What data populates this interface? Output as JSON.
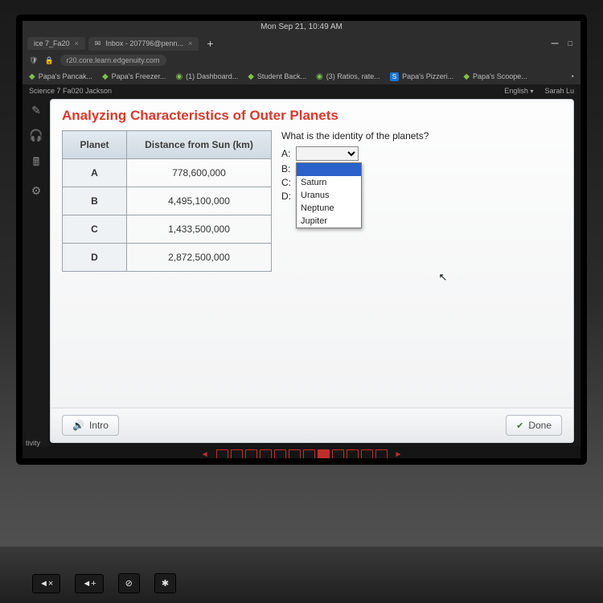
{
  "menubar": {
    "datetime": "Mon Sep 21, 10:49 AM"
  },
  "tabs": [
    {
      "label": "ice 7_Fa20",
      "closeable": true
    },
    {
      "label": "Inbox - 207796@penn...",
      "closeable": true
    }
  ],
  "address": {
    "url": "r20.core.learn.edgenuity.com"
  },
  "bookmarks": [
    {
      "label": "Papa's Pancak..."
    },
    {
      "label": "Papa's Freezer..."
    },
    {
      "label": "(1) Dashboard..."
    },
    {
      "label": "Student Back..."
    },
    {
      "label": "(3) Ratios, rate..."
    },
    {
      "label": "Papa's Pizzeri...",
      "badge": "S"
    },
    {
      "label": "Papa's Scoope..."
    }
  ],
  "breadcrumb": {
    "course": "Science 7  Fa020  Jackson",
    "language": "English",
    "user": "Sarah Lu"
  },
  "lesson": {
    "title": "Analyzing Characteristics of Outer Planets",
    "question": "What is the identity of the planets?",
    "answers": [
      "A:",
      "B:",
      "C:",
      "D:"
    ],
    "dropdown_options": [
      "Saturn",
      "Uranus",
      "Neptune",
      "Jupiter"
    ],
    "table": {
      "columns": [
        "Planet",
        "Distance from Sun (km)"
      ],
      "rows": [
        [
          "A",
          "778,600,000"
        ],
        [
          "B",
          "4,495,100,000"
        ],
        [
          "C",
          "1,433,500,000"
        ],
        [
          "D",
          "2,872,500,000"
        ]
      ]
    },
    "footer": {
      "intro": "Intro",
      "done": "Done"
    }
  },
  "progress": {
    "total": 12,
    "active_index": 7
  },
  "left_label": "tivity",
  "keys": [
    "◄×",
    "◄+",
    "⊘",
    "✱"
  ]
}
